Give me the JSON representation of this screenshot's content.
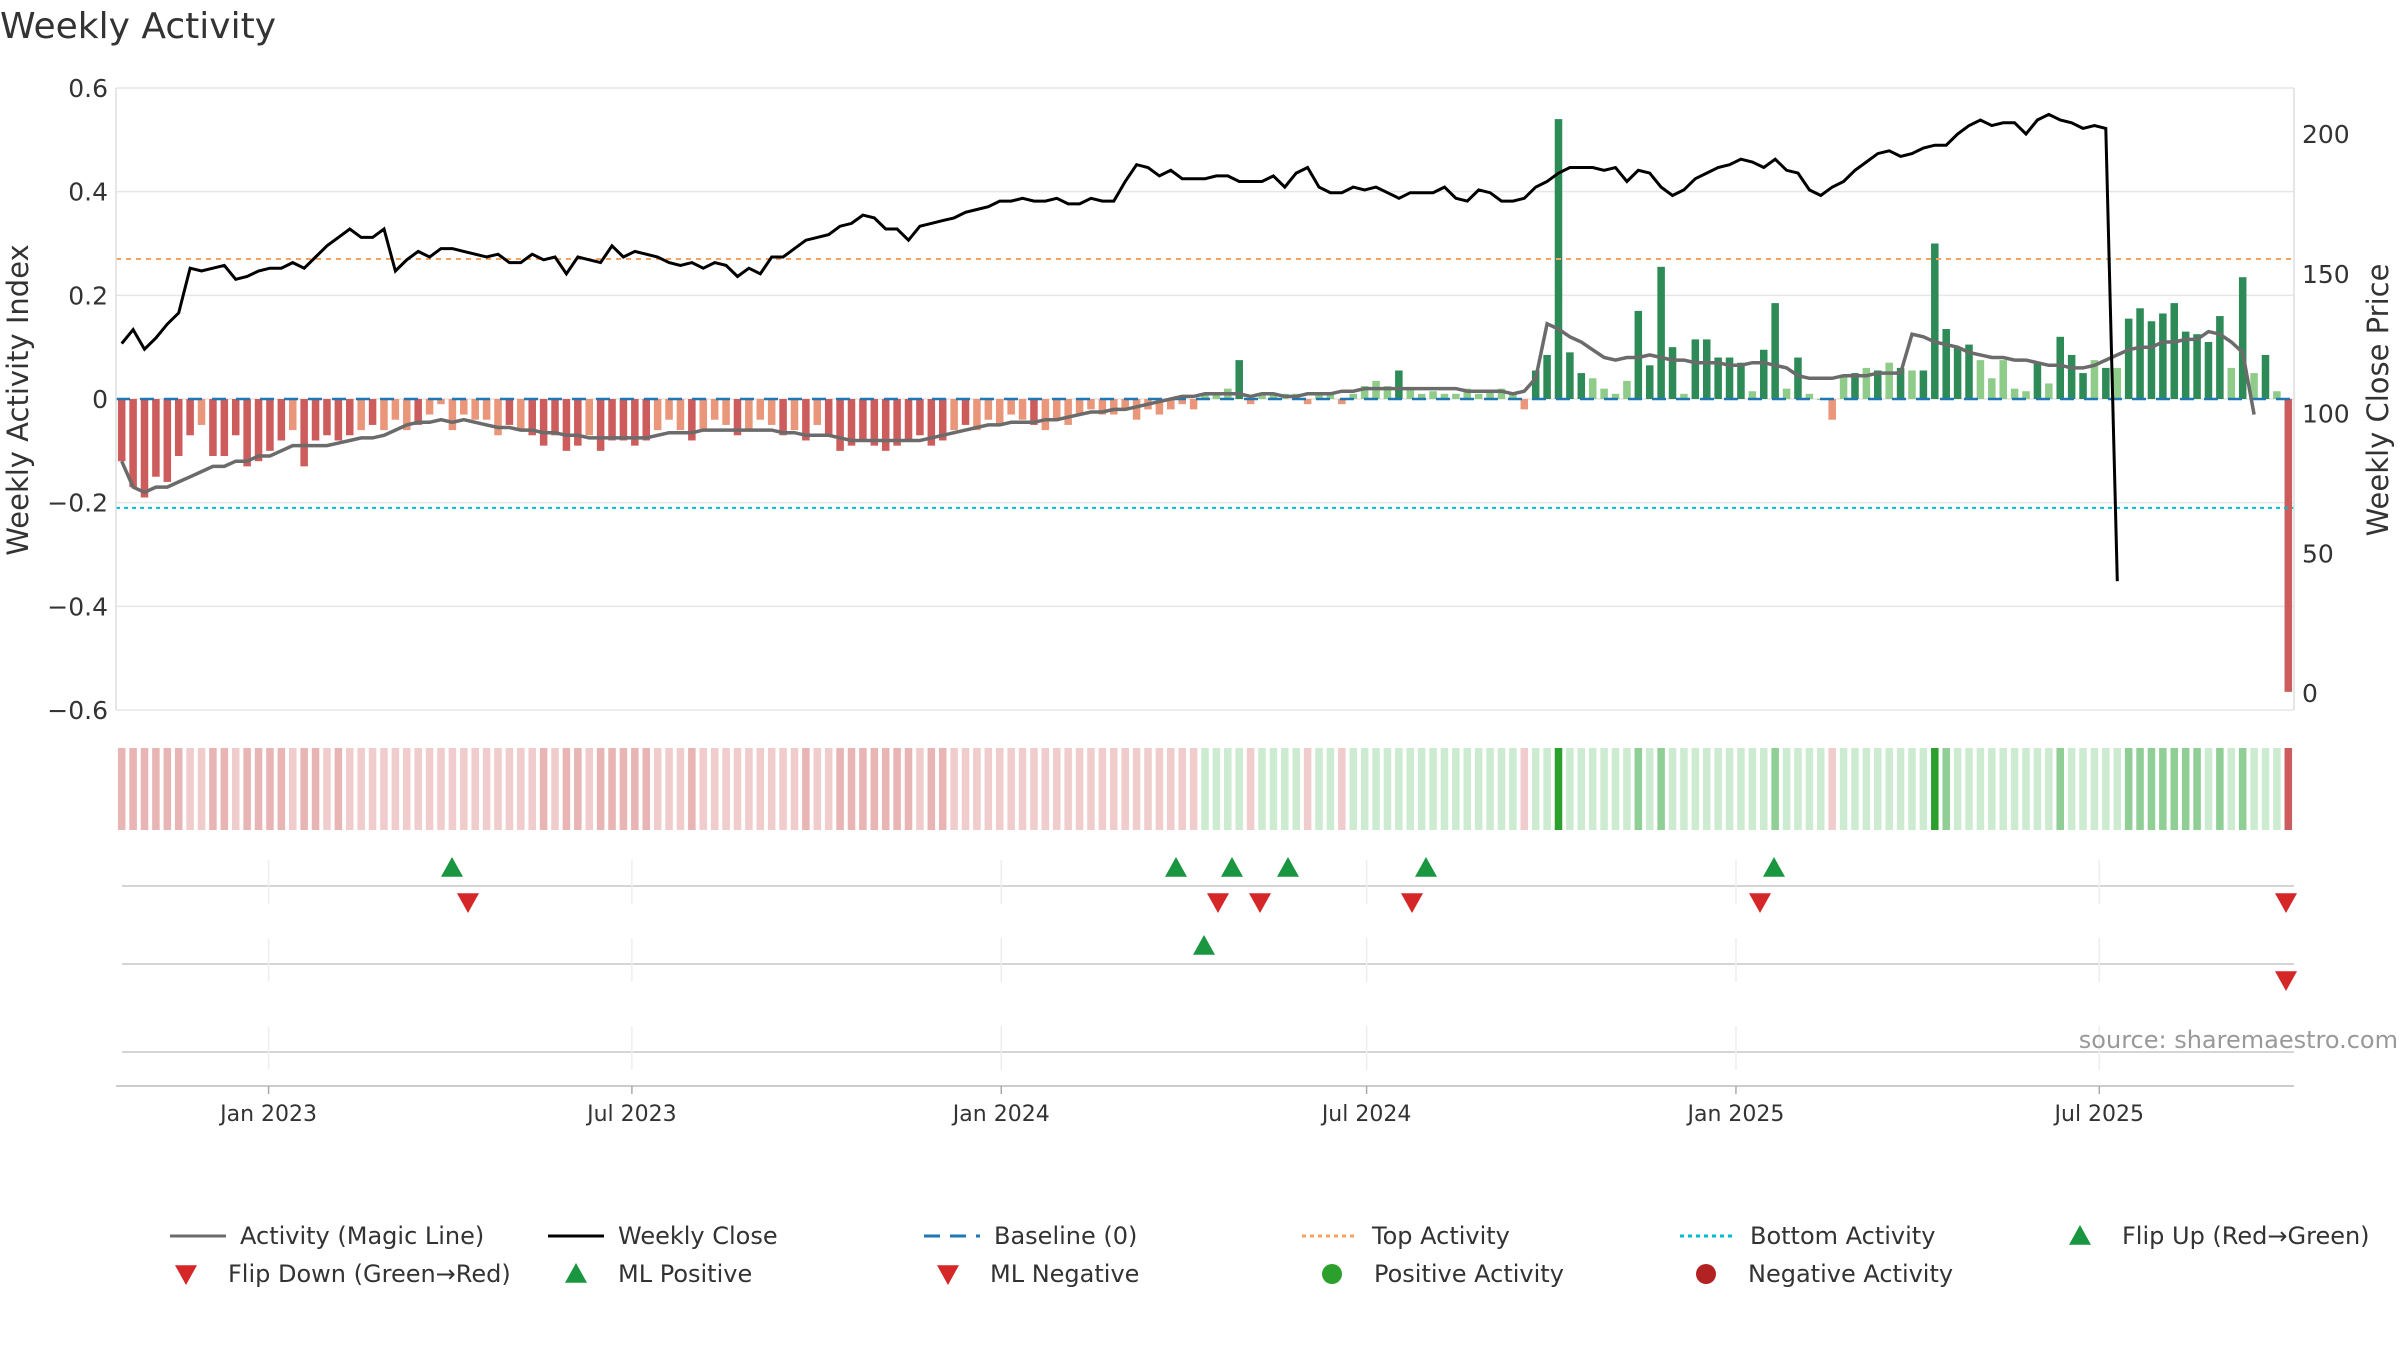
{
  "chart_data": {
    "type": "bar",
    "title": "Weekly Activity",
    "source_note": "source: sharemaestro.com",
    "ylabel": "Weekly Activity Index",
    "ylabel_right": "Weekly Close Price",
    "ylim": [
      -0.6,
      0.6
    ],
    "ylim_right": [
      0,
      215
    ],
    "y_ticks": [
      "0.6",
      "0.4",
      "0.2",
      "0",
      "−0.2",
      "−0.4",
      "−0.6"
    ],
    "y_tick_values": [
      0.6,
      0.4,
      0.2,
      0,
      -0.2,
      -0.4,
      -0.6
    ],
    "y_right_ticks": [
      "200",
      "150",
      "100",
      "50",
      "0"
    ],
    "y_right_tick_values": [
      200,
      150,
      100,
      50,
      0
    ],
    "x_start": "2022-10-17",
    "x_end": "2025-10-06",
    "x_ticks": [
      {
        "label": "Jan 2023",
        "date": "2023-01-01"
      },
      {
        "label": "Jul 2023",
        "date": "2023-07-01"
      },
      {
        "label": "Jan 2024",
        "date": "2024-01-01"
      },
      {
        "label": "Jul 2024",
        "date": "2024-07-01"
      },
      {
        "label": "Jan 2025",
        "date": "2025-01-01"
      },
      {
        "label": "Jul 2025",
        "date": "2025-07-01"
      }
    ],
    "top_activity": 0.27,
    "bottom_activity": -0.21,
    "baseline": 0,
    "activity_values": [
      -0.12,
      -0.17,
      -0.19,
      -0.15,
      -0.16,
      -0.11,
      -0.07,
      -0.05,
      -0.11,
      -0.11,
      -0.07,
      -0.13,
      -0.12,
      -0.1,
      -0.08,
      -0.06,
      -0.13,
      -0.08,
      -0.07,
      -0.08,
      -0.07,
      -0.06,
      -0.05,
      -0.06,
      -0.04,
      -0.06,
      -0.05,
      -0.03,
      -0.01,
      -0.06,
      -0.03,
      -0.04,
      -0.04,
      -0.07,
      -0.05,
      -0.06,
      -0.07,
      -0.09,
      -0.07,
      -0.1,
      -0.09,
      -0.07,
      -0.1,
      -0.08,
      -0.08,
      -0.09,
      -0.08,
      -0.06,
      -0.04,
      -0.06,
      -0.08,
      -0.06,
      -0.04,
      -0.05,
      -0.07,
      -0.06,
      -0.04,
      -0.05,
      -0.07,
      -0.06,
      -0.08,
      -0.05,
      -0.07,
      -0.1,
      -0.09,
      -0.08,
      -0.09,
      -0.1,
      -0.09,
      -0.08,
      -0.07,
      -0.09,
      -0.08,
      -0.06,
      -0.05,
      -0.06,
      -0.04,
      -0.05,
      -0.03,
      -0.04,
      -0.05,
      -0.06,
      -0.04,
      -0.05,
      -0.03,
      -0.02,
      -0.03,
      -0.03,
      -0.02,
      -0.04,
      -0.02,
      -0.03,
      -0.02,
      -0.01,
      -0.02,
      0.01,
      0.01,
      0.02,
      0.075,
      -0.01,
      0.01,
      0.01,
      0.01,
      0.01,
      -0.01,
      0.01,
      0.01,
      -0.01,
      0.01,
      0.025,
      0.035,
      0.025,
      0.055,
      0.02,
      0.01,
      0.015,
      0.01,
      0.01,
      0.02,
      0.01,
      0.015,
      0.02,
      0.01,
      -0.02,
      0.055,
      0.085,
      0.54,
      0.09,
      0.05,
      0.04,
      0.02,
      0.01,
      0.035,
      0.17,
      0.065,
      0.255,
      0.1,
      0.01,
      0.115,
      0.115,
      0.08,
      0.08,
      0.07,
      0.015,
      0.095,
      0.185,
      0.02,
      0.08,
      0.01,
      0.0,
      -0.04,
      0.045,
      0.05,
      0.06,
      0.055,
      0.07,
      0.06,
      0.055,
      0.055,
      0.3,
      0.135,
      0.1,
      0.105,
      0.075,
      0.04,
      0.075,
      0.02,
      0.015,
      0.07,
      0.03,
      0.12,
      0.085,
      0.05,
      0.075,
      0.06,
      0.06,
      0.155,
      0.175,
      0.15,
      0.165,
      0.185,
      0.13,
      0.125,
      0.11,
      0.16,
      0.06,
      0.235,
      0.05,
      0.085,
      0.015,
      -0.565
    ],
    "magic_line_values": [
      -0.12,
      -0.17,
      -0.18,
      -0.17,
      -0.17,
      -0.16,
      -0.15,
      -0.14,
      -0.13,
      -0.13,
      -0.12,
      -0.12,
      -0.11,
      -0.11,
      -0.1,
      -0.09,
      -0.09,
      -0.09,
      -0.09,
      -0.085,
      -0.08,
      -0.075,
      -0.075,
      -0.07,
      -0.06,
      -0.05,
      -0.045,
      -0.045,
      -0.04,
      -0.045,
      -0.04,
      -0.045,
      -0.05,
      -0.055,
      -0.055,
      -0.06,
      -0.06,
      -0.065,
      -0.065,
      -0.07,
      -0.07,
      -0.075,
      -0.075,
      -0.075,
      -0.075,
      -0.075,
      -0.075,
      -0.07,
      -0.065,
      -0.065,
      -0.065,
      -0.06,
      -0.06,
      -0.06,
      -0.06,
      -0.06,
      -0.06,
      -0.06,
      -0.065,
      -0.065,
      -0.07,
      -0.07,
      -0.07,
      -0.075,
      -0.08,
      -0.08,
      -0.08,
      -0.08,
      -0.08,
      -0.08,
      -0.08,
      -0.075,
      -0.07,
      -0.065,
      -0.06,
      -0.055,
      -0.05,
      -0.05,
      -0.045,
      -0.045,
      -0.045,
      -0.04,
      -0.04,
      -0.035,
      -0.03,
      -0.025,
      -0.025,
      -0.02,
      -0.02,
      -0.015,
      -0.01,
      -0.005,
      0.0,
      0.005,
      0.005,
      0.01,
      0.01,
      0.01,
      0.01,
      0.005,
      0.01,
      0.01,
      0.005,
      0.005,
      0.01,
      0.01,
      0.01,
      0.015,
      0.015,
      0.02,
      0.02,
      0.02,
      0.02,
      0.02,
      0.02,
      0.02,
      0.02,
      0.02,
      0.015,
      0.015,
      0.015,
      0.015,
      0.01,
      0.015,
      0.04,
      0.145,
      0.135,
      0.12,
      0.11,
      0.095,
      0.08,
      0.075,
      0.08,
      0.08,
      0.085,
      0.08,
      0.075,
      0.075,
      0.07,
      0.07,
      0.07,
      0.065,
      0.065,
      0.07,
      0.07,
      0.065,
      0.06,
      0.045,
      0.04,
      0.04,
      0.04,
      0.045,
      0.045,
      0.045,
      0.05,
      0.05,
      0.05,
      0.125,
      0.12,
      0.11,
      0.105,
      0.1,
      0.09,
      0.085,
      0.08,
      0.08,
      0.075,
      0.075,
      0.07,
      0.065,
      0.065,
      0.06,
      0.06,
      0.065,
      0.075,
      0.085,
      0.095,
      0.1,
      0.1,
      0.11,
      0.11,
      0.115,
      0.115,
      0.13,
      0.125,
      0.11,
      0.09,
      -0.03
    ],
    "weekly_close_values": [
      125,
      130,
      123,
      127,
      132,
      136,
      152,
      151,
      152,
      153,
      148,
      149,
      151,
      152,
      152,
      154,
      152,
      156,
      160,
      163,
      166,
      163,
      163,
      166,
      151,
      155,
      158,
      156,
      159,
      159,
      158,
      157,
      156,
      157,
      154,
      154,
      157,
      155,
      156,
      150,
      156,
      155,
      154,
      160,
      156,
      158,
      157,
      156,
      154,
      153,
      154,
      152,
      154,
      153,
      149,
      152,
      150,
      156,
      156,
      159,
      162,
      163,
      164,
      167,
      168,
      171,
      170,
      166,
      166,
      162,
      167,
      168,
      169,
      170,
      172,
      173,
      174,
      176,
      176,
      177,
      176,
      176,
      177,
      175,
      175,
      177,
      176,
      176,
      183,
      189,
      188,
      185,
      187,
      184,
      184,
      184,
      185,
      185,
      183,
      183,
      183,
      185,
      181,
      186,
      188,
      181,
      179,
      179,
      181,
      180,
      181,
      179,
      177,
      179,
      179,
      179,
      181,
      177,
      176,
      180,
      179,
      176,
      176,
      177,
      181,
      183,
      186,
      188,
      188,
      188,
      187,
      188,
      183,
      187,
      186,
      181,
      178,
      180,
      184,
      186,
      188,
      189,
      191,
      190,
      188,
      191,
      187,
      186,
      180,
      178,
      181,
      183,
      187,
      190,
      193,
      194,
      192,
      193,
      195,
      196,
      196,
      200,
      203,
      205,
      203,
      204,
      204,
      200,
      205,
      207,
      205,
      204,
      202,
      203,
      202,
      40
    ],
    "flip_up_index": [
      48,
      126
    ],
    "flip_down_index": [
      49,
      127,
      203
    ],
    "ml_positive_index": [
      96,
      126
    ],
    "ml_negative_index": [
      100,
      127,
      203
    ],
    "legend": [
      {
        "label": "Activity (Magic Line)",
        "kind": "line",
        "color": "#6b6b6b"
      },
      {
        "label": "Weekly Close",
        "kind": "line",
        "color": "#000000"
      },
      {
        "label": "Baseline (0)",
        "kind": "dashed",
        "color": "#1f77b4"
      },
      {
        "label": "Top Activity",
        "kind": "dotted",
        "color": "#f4a460"
      },
      {
        "label": "Bottom Activity",
        "kind": "dotted",
        "color": "#00bcd4"
      },
      {
        "label": "Flip Up (Red→Green)",
        "kind": "triangle-up",
        "color": "#1a9641"
      },
      {
        "label": "Flip Down (Green→Red)",
        "kind": "triangle-down",
        "color": "#d62728"
      },
      {
        "label": "ML Positive",
        "kind": "triangle-up",
        "color": "#1a9641"
      },
      {
        "label": "ML Negative",
        "kind": "triangle-down",
        "color": "#d62728"
      },
      {
        "label": "Positive Activity",
        "kind": "circle",
        "color": "#2ca02c"
      },
      {
        "label": "Negative Activity",
        "kind": "circle",
        "color": "#b22222"
      }
    ],
    "colors": {
      "pos_strong": "#2e8b57",
      "pos_light": "#8fcc8a",
      "neg_strong": "#cd5c5c",
      "neg_light": "#e9967a",
      "magic_line": "#6b6b6b",
      "close_line": "#000000",
      "grid": "#e6e6e6"
    }
  }
}
